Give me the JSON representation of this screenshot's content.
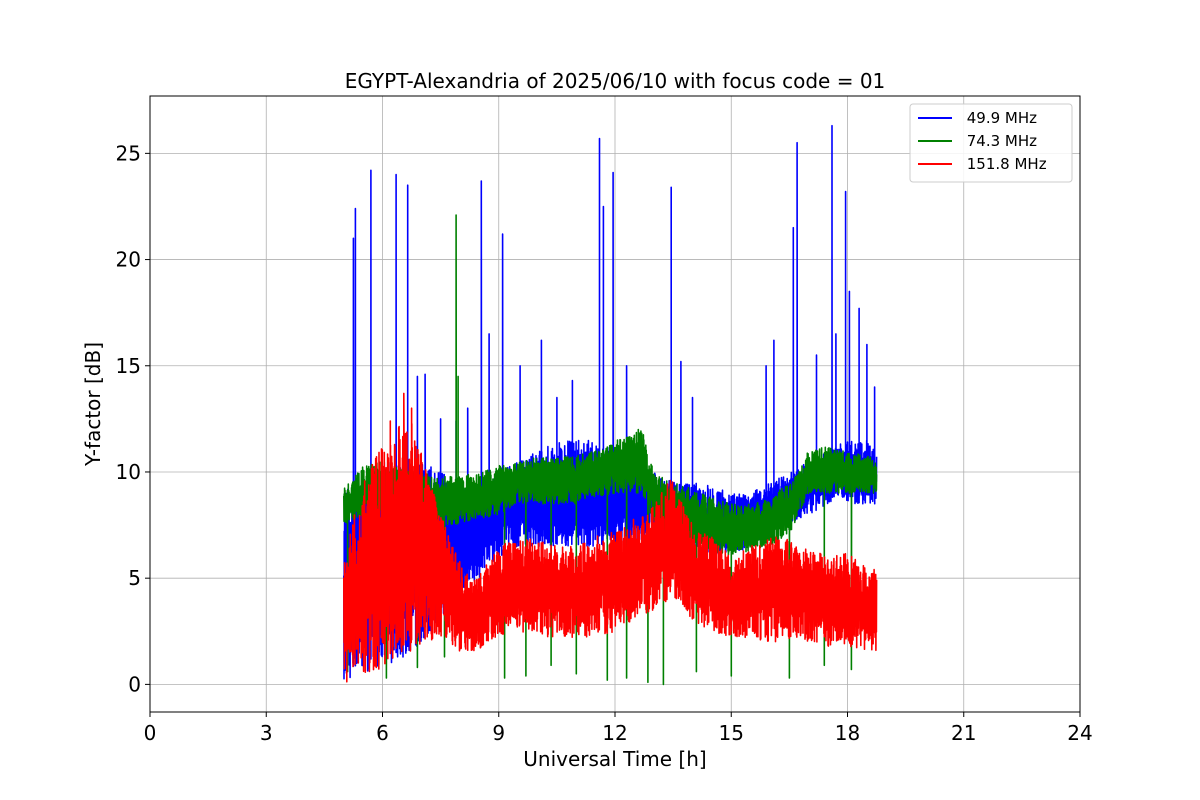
{
  "chart_data": {
    "type": "line",
    "title": "EGYPT-Alexandria of 2025/06/10 with focus code = 01",
    "xlabel": "Universal Time [h]",
    "ylabel": "Y-factor [dB]",
    "xlim": [
      0,
      24
    ],
    "ylim": [
      -1.3,
      27.7
    ],
    "xticks": [
      0,
      3,
      6,
      9,
      12,
      15,
      18,
      21,
      24
    ],
    "xtick_labels": [
      "0",
      "3",
      "6",
      "9",
      "12",
      "15",
      "18",
      "21",
      "24"
    ],
    "yticks": [
      0,
      5,
      10,
      15,
      20,
      25
    ],
    "ytick_labels": [
      "0",
      "5",
      "10",
      "15",
      "20",
      "25"
    ],
    "grid": true,
    "legend_position": "top-right",
    "x_range_observed": [
      4.98,
      18.75
    ],
    "series": [
      {
        "name": " 49.9 MHz",
        "color": "#0000ff",
        "envelope": {
          "x": [
            5.0,
            5.5,
            6.0,
            6.5,
            7.0,
            7.5,
            8.0,
            8.5,
            9.0,
            9.5,
            10.0,
            10.5,
            11.0,
            11.5,
            12.0,
            12.5,
            13.0,
            13.5,
            14.0,
            14.5,
            15.0,
            15.5,
            16.0,
            16.5,
            17.0,
            17.5,
            18.0,
            18.5,
            18.75
          ],
          "high": [
            9.0,
            10.0,
            10.5,
            10.5,
            10.5,
            10.0,
            9.5,
            9.5,
            10.0,
            10.5,
            11.0,
            11.5,
            11.5,
            11.5,
            11.0,
            10.5,
            10.0,
            9.5,
            9.5,
            9.5,
            9.0,
            9.0,
            9.5,
            10.0,
            10.5,
            11.0,
            11.5,
            11.5,
            11.0
          ],
          "low": [
            0.2,
            0.5,
            1.0,
            1.0,
            2.0,
            3.0,
            4.0,
            5.0,
            6.0,
            6.5,
            6.5,
            6.5,
            6.5,
            6.5,
            6.5,
            6.5,
            7.0,
            7.0,
            6.5,
            6.0,
            6.0,
            6.5,
            7.0,
            7.5,
            8.0,
            8.5,
            8.5,
            8.5,
            8.5
          ]
        },
        "spikes": [
          {
            "x": 5.25,
            "y": 21.0
          },
          {
            "x": 5.3,
            "y": 22.4
          },
          {
            "x": 5.7,
            "y": 24.2
          },
          {
            "x": 6.35,
            "y": 24.0
          },
          {
            "x": 6.65,
            "y": 23.5
          },
          {
            "x": 6.9,
            "y": 14.5
          },
          {
            "x": 7.1,
            "y": 14.6
          },
          {
            "x": 7.5,
            "y": 12.5
          },
          {
            "x": 7.9,
            "y": 12.4
          },
          {
            "x": 8.2,
            "y": 13.0
          },
          {
            "x": 8.55,
            "y": 23.7
          },
          {
            "x": 8.75,
            "y": 16.5
          },
          {
            "x": 9.1,
            "y": 21.2
          },
          {
            "x": 9.55,
            "y": 15.0
          },
          {
            "x": 10.1,
            "y": 16.2
          },
          {
            "x": 10.5,
            "y": 13.5
          },
          {
            "x": 10.9,
            "y": 14.3
          },
          {
            "x": 11.6,
            "y": 25.7
          },
          {
            "x": 11.7,
            "y": 22.5
          },
          {
            "x": 11.95,
            "y": 24.1
          },
          {
            "x": 12.3,
            "y": 15.0
          },
          {
            "x": 13.45,
            "y": 23.4
          },
          {
            "x": 13.7,
            "y": 15.2
          },
          {
            "x": 14.0,
            "y": 13.5
          },
          {
            "x": 15.9,
            "y": 15.0
          },
          {
            "x": 16.1,
            "y": 16.2
          },
          {
            "x": 16.6,
            "y": 21.5
          },
          {
            "x": 16.7,
            "y": 25.5
          },
          {
            "x": 17.2,
            "y": 15.5
          },
          {
            "x": 17.6,
            "y": 26.3
          },
          {
            "x": 17.7,
            "y": 16.5
          },
          {
            "x": 17.95,
            "y": 23.2
          },
          {
            "x": 18.05,
            "y": 18.5
          },
          {
            "x": 18.3,
            "y": 17.7
          },
          {
            "x": 18.5,
            "y": 16.0
          },
          {
            "x": 18.7,
            "y": 14.0
          }
        ]
      },
      {
        "name": " 74.3 MHz",
        "color": "#008000",
        "envelope": {
          "x": [
            5.0,
            5.5,
            6.0,
            6.5,
            7.0,
            7.5,
            8.0,
            8.5,
            9.0,
            9.5,
            10.0,
            10.5,
            11.0,
            11.5,
            12.0,
            12.5,
            12.7,
            13.0,
            13.5,
            14.0,
            14.5,
            15.0,
            15.5,
            16.0,
            16.5,
            17.0,
            17.5,
            18.0,
            18.5,
            18.75
          ],
          "high": [
            9.2,
            10.3,
            10.5,
            10.2,
            10.0,
            9.8,
            9.8,
            10.0,
            10.3,
            10.5,
            10.7,
            10.7,
            10.8,
            11.0,
            11.5,
            11.8,
            12.0,
            10.0,
            9.5,
            9.2,
            8.8,
            8.5,
            8.5,
            8.8,
            9.5,
            11.0,
            11.2,
            11.0,
            10.8,
            10.5
          ],
          "low": [
            7.5,
            8.0,
            8.0,
            8.0,
            8.0,
            7.5,
            7.5,
            7.8,
            8.0,
            8.5,
            8.5,
            8.5,
            8.5,
            8.8,
            9.0,
            9.0,
            9.0,
            7.5,
            7.0,
            6.5,
            6.2,
            6.0,
            6.2,
            6.5,
            7.0,
            9.0,
            9.0,
            9.0,
            9.0,
            9.0
          ]
        },
        "dips": [
          {
            "x": 5.1,
            "y": 0.6
          },
          {
            "x": 6.1,
            "y": 0.3
          },
          {
            "x": 6.9,
            "y": 0.8
          },
          {
            "x": 7.6,
            "y": 1.3
          },
          {
            "x": 9.15,
            "y": 0.3
          },
          {
            "x": 9.7,
            "y": 0.4
          },
          {
            "x": 10.35,
            "y": 0.9
          },
          {
            "x": 11.0,
            "y": 0.5
          },
          {
            "x": 11.8,
            "y": 0.2
          },
          {
            "x": 12.3,
            "y": 0.3
          },
          {
            "x": 12.85,
            "y": 0.1
          },
          {
            "x": 13.25,
            "y": 0.0
          },
          {
            "x": 14.1,
            "y": 0.6
          },
          {
            "x": 15.0,
            "y": 0.4
          },
          {
            "x": 16.5,
            "y": 0.3
          },
          {
            "x": 17.4,
            "y": 0.9
          },
          {
            "x": 18.1,
            "y": 0.7
          }
        ],
        "spikes": [
          {
            "x": 7.9,
            "y": 22.1
          },
          {
            "x": 7.95,
            "y": 14.5
          },
          {
            "x": 12.6,
            "y": 12.0
          }
        ]
      },
      {
        "name": " 151.8 MHz",
        "color": "#ff0000",
        "envelope": {
          "x": [
            5.0,
            5.25,
            5.5,
            5.75,
            6.0,
            6.25,
            6.5,
            6.75,
            7.0,
            7.25,
            7.5,
            7.75,
            8.0,
            8.25,
            8.5,
            8.75,
            9.0,
            9.5,
            10.0,
            10.5,
            11.0,
            11.5,
            12.0,
            12.5,
            13.0,
            13.25,
            13.5,
            13.75,
            14.0,
            14.5,
            15.0,
            15.5,
            16.0,
            16.5,
            17.0,
            17.5,
            18.0,
            18.5,
            18.75
          ],
          "high": [
            6.0,
            8.0,
            9.5,
            10.5,
            11.2,
            11.8,
            12.3,
            12.8,
            11.0,
            9.5,
            8.2,
            6.8,
            5.8,
            5.0,
            5.2,
            5.8,
            6.5,
            7.0,
            6.8,
            6.5,
            6.5,
            7.0,
            7.2,
            7.8,
            8.5,
            9.2,
            9.8,
            8.5,
            7.5,
            7.0,
            6.0,
            6.5,
            7.0,
            6.8,
            6.5,
            6.0,
            6.2,
            5.5,
            5.5
          ],
          "low": [
            0.0,
            0.3,
            0.5,
            0.6,
            0.8,
            1.0,
            1.3,
            1.6,
            1.8,
            2.0,
            2.2,
            2.0,
            1.5,
            1.4,
            1.6,
            2.0,
            2.3,
            2.5,
            2.3,
            2.2,
            2.2,
            2.2,
            2.5,
            3.0,
            3.5,
            3.8,
            4.0,
            3.5,
            3.0,
            2.5,
            2.2,
            2.2,
            2.0,
            2.0,
            2.0,
            1.8,
            1.8,
            1.5,
            1.5
          ]
        },
        "spikes": [
          {
            "x": 6.55,
            "y": 13.7
          },
          {
            "x": 6.75,
            "y": 13.0
          },
          {
            "x": 6.2,
            "y": 12.4
          }
        ]
      }
    ]
  }
}
